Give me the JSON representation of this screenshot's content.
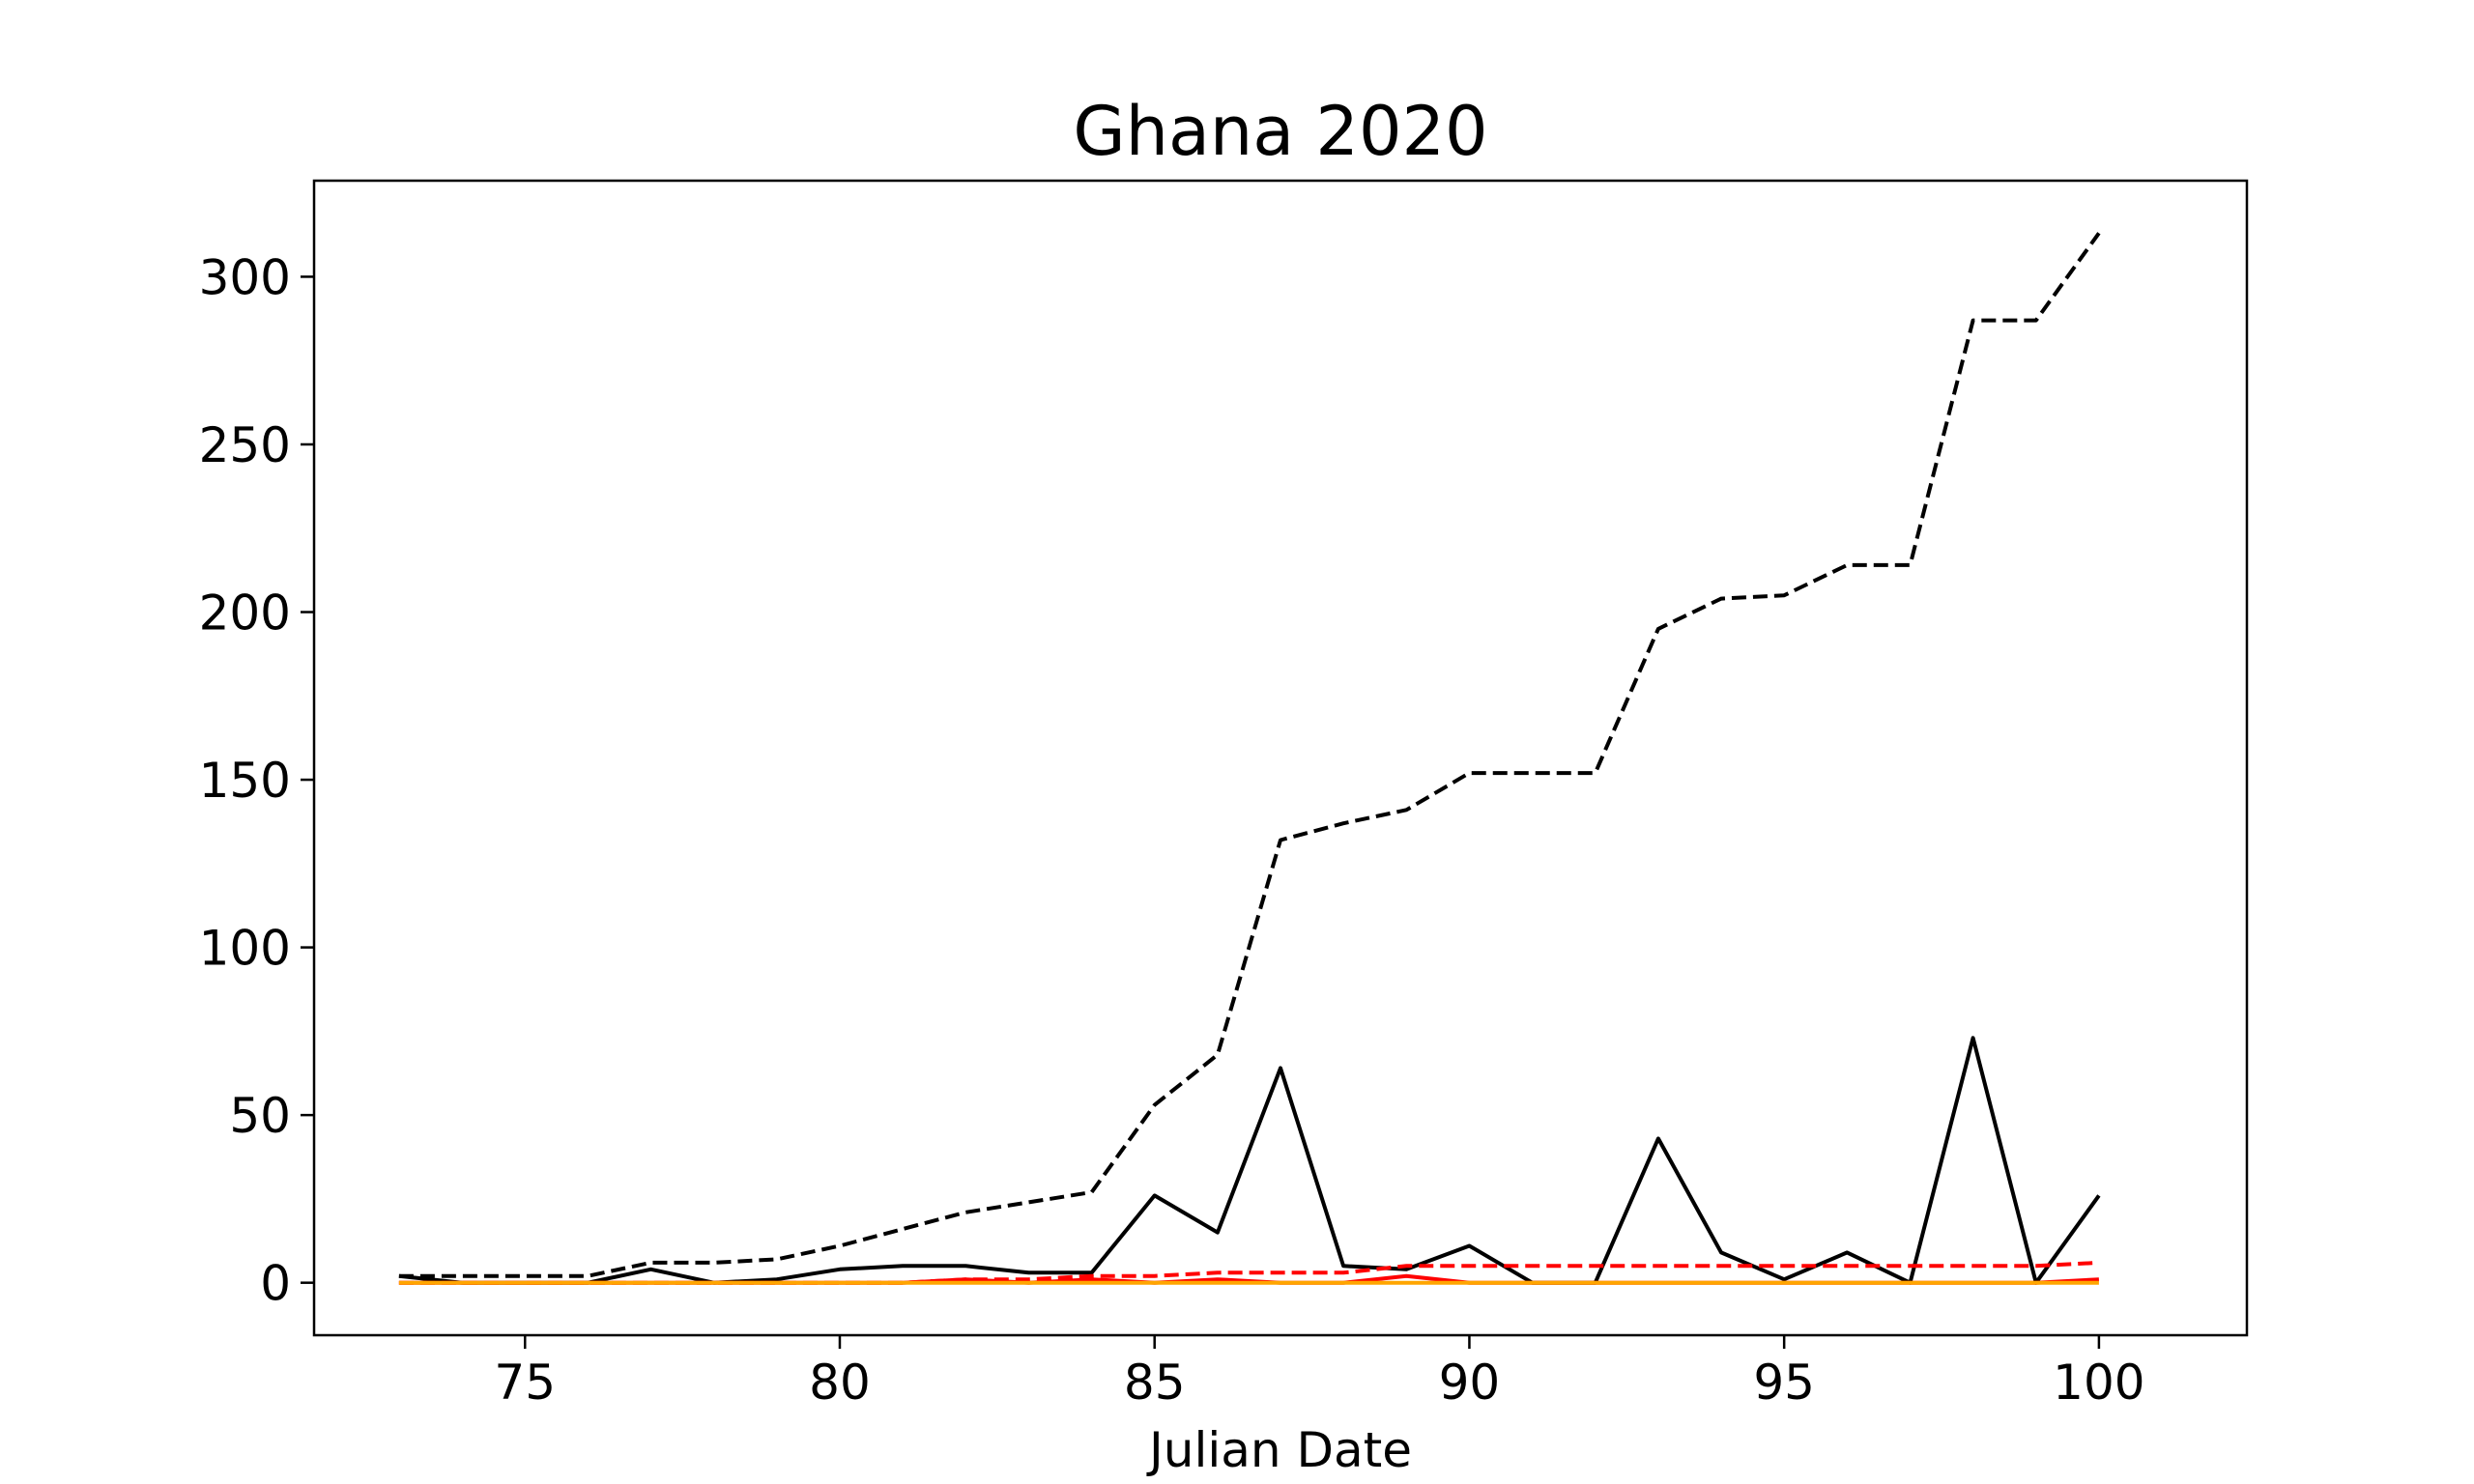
{
  "chart_data": {
    "type": "line",
    "title": "Ghana 2020",
    "xlabel": "Julian Date",
    "ylabel": "",
    "xlim": [
      71.65,
      102.35
    ],
    "ylim": [
      -15.65,
      328.65
    ],
    "xticks": [
      75,
      80,
      85,
      90,
      95,
      100
    ],
    "yticks": [
      0,
      50,
      100,
      150,
      200,
      250,
      300
    ],
    "grid": false,
    "legend": "none",
    "x": [
      73,
      74,
      75,
      76,
      77,
      78,
      79,
      80,
      81,
      82,
      83,
      84,
      85,
      86,
      87,
      88,
      89,
      90,
      91,
      92,
      93,
      94,
      95,
      96,
      97,
      98,
      99,
      100
    ],
    "series": [
      {
        "color": "#000000",
        "style": "dashed",
        "values": [
          2,
          2,
          2,
          2,
          6,
          6,
          7,
          11,
          16,
          21,
          24,
          27,
          53,
          68,
          132,
          137,
          141,
          152,
          152,
          152,
          195,
          204,
          205,
          214,
          214,
          287,
          287,
          313
        ]
      },
      {
        "color": "#000000",
        "style": "solid",
        "values": [
          2,
          0,
          0,
          0,
          4,
          0,
          1,
          4,
          5,
          5,
          3,
          3,
          26,
          15,
          64,
          5,
          4,
          11,
          0,
          0,
          43,
          9,
          1,
          9,
          0,
          73,
          0,
          26
        ]
      },
      {
        "color": "#ff0000",
        "style": "dashed",
        "values": [
          0,
          0,
          0,
          0,
          0,
          0,
          0,
          0,
          0,
          1,
          1,
          2,
          2,
          3,
          3,
          3,
          5,
          5,
          5,
          5,
          5,
          5,
          5,
          5,
          5,
          5,
          5,
          6
        ]
      },
      {
        "color": "#ff0000",
        "style": "solid",
        "values": [
          0,
          0,
          0,
          0,
          0,
          0,
          0,
          0,
          0,
          1,
          0,
          1,
          0,
          1,
          0,
          0,
          2,
          0,
          0,
          0,
          0,
          0,
          0,
          0,
          0,
          0,
          0,
          1
        ]
      },
      {
        "color": "#ffa500",
        "style": "solid",
        "values": [
          0,
          0,
          0,
          0,
          0,
          0,
          0,
          0,
          0,
          0,
          0,
          0,
          0,
          0,
          0,
          0,
          0,
          0,
          0,
          0,
          0,
          0,
          0,
          0,
          0,
          0,
          0,
          0
        ]
      }
    ]
  }
}
